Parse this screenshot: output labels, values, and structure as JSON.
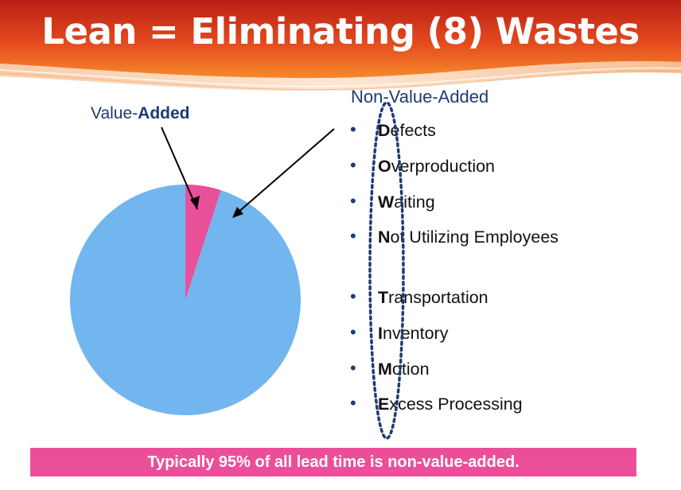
{
  "title": "Lean = Eliminating (8) Wastes",
  "value_added_label": {
    "prefix": "Value-",
    "bold": "Added"
  },
  "non_value_added_label": "Non-Value-Added",
  "wastes": [
    {
      "initial": "D",
      "rest": "efects"
    },
    {
      "initial": "O",
      "rest": "verproduction"
    },
    {
      "initial": "W",
      "rest": "aiting"
    },
    {
      "initial": "N",
      "rest": "ot Utilizing Employees"
    },
    {
      "initial": "T",
      "rest": "ransportation"
    },
    {
      "initial": "I",
      "rest": "nventory"
    },
    {
      "initial": "M",
      "rest": "otion"
    },
    {
      "initial": "E",
      "rest": "xcess Processing"
    }
  ],
  "pie": {
    "value_added_fraction": 0.05,
    "non_value_added_fraction": 0.95
  },
  "banner_text": "Typically 95% of all lead time is non-value-added.",
  "colors": {
    "header_top": "#b81f15",
    "header_bottom": "#f68a2c",
    "value_added": "#e9509a",
    "non_value_added": "#71b6ee",
    "label_blue": "#1f3b73",
    "banner": "#ec4f9a",
    "ellipse": "#1f3b73"
  },
  "bullet_char": "•"
}
